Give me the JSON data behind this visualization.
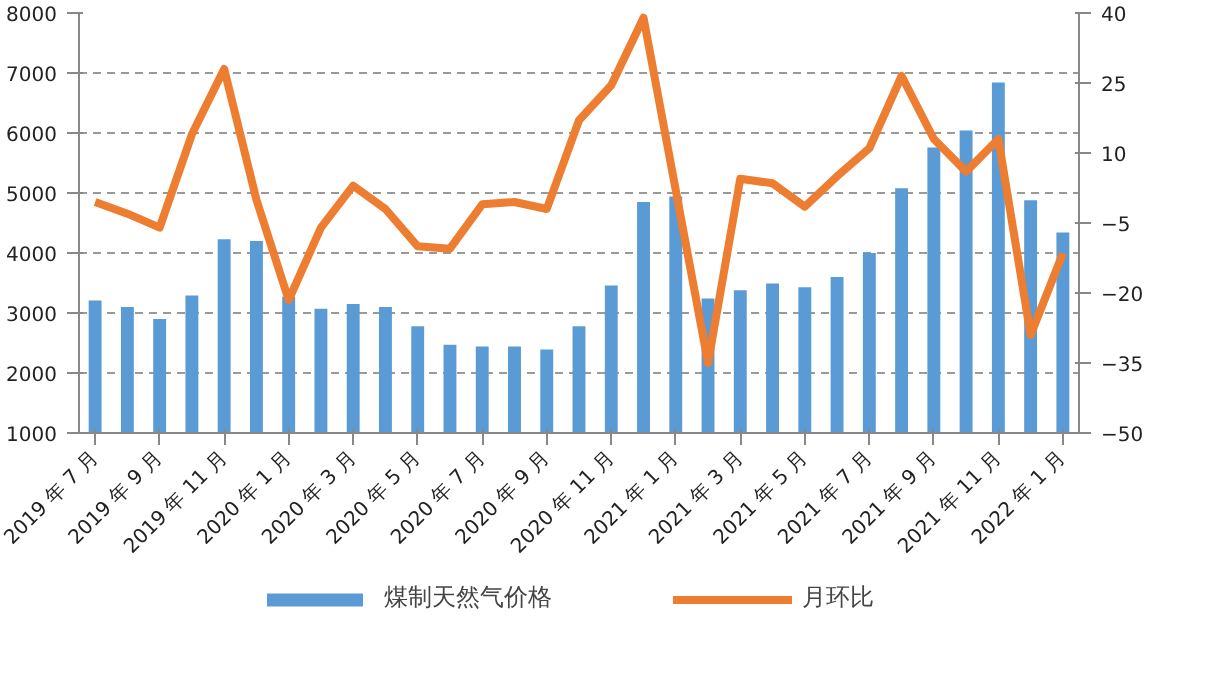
{
  "chart_data": {
    "type": "bar",
    "categories": [
      "2019 年 7 月",
      null,
      "2019 年 9 月",
      null,
      "2019 年 11 月",
      null,
      "2020 年 1 月",
      null,
      "2020 年 3 月",
      null,
      "2020 年 5 月",
      null,
      "2020 年 7 月",
      null,
      "2020 年 9 月",
      null,
      "2020 年 11 月",
      null,
      "2021 年 1 月",
      null,
      "2021 年 3 月",
      null,
      "2021 年 5 月",
      null,
      "2021 年 7 月",
      null,
      "2021 年 9 月",
      null,
      "2021 年 11 月",
      null,
      "2022 年 1 月"
    ],
    "series": [
      {
        "name": "煤制天然气价格",
        "color": "#5b9bd5",
        "values": [
          3210,
          3100,
          2900,
          3290,
          4230,
          4200,
          3270,
          3070,
          3150,
          3100,
          2780,
          2470,
          2440,
          2440,
          2390,
          2780,
          3460,
          4850,
          4940,
          3240,
          3380,
          3490,
          3430,
          3600,
          4000,
          5080,
          5760,
          6040,
          6840,
          4880,
          4340
        ]
      },
      {
        "name": "月环比",
        "type": "line",
        "axis": "y2",
        "color": "#ed7d31",
        "values": [
          -0.5,
          -3,
          -6,
          14,
          28,
          0,
          -21.5,
          -6,
          3,
          -2,
          -10,
          -10.5,
          -1,
          -0.5,
          -2,
          17,
          24.5,
          39,
          2,
          -35,
          4.5,
          3.5,
          -1.5,
          5,
          11,
          26.5,
          13,
          6,
          13,
          -29,
          -11.5
        ]
      }
    ],
    "ylim": [
      1000,
      8000
    ],
    "yticks": [
      1000,
      2000,
      3000,
      4000,
      5000,
      6000,
      7000,
      8000
    ],
    "y2lim": [
      -50,
      40
    ],
    "y2ticks": [
      -50,
      -35,
      -20,
      -5,
      10,
      25,
      40
    ],
    "grid": "y",
    "legend": "bottom",
    "line_style": "solid",
    "marker": "none"
  }
}
